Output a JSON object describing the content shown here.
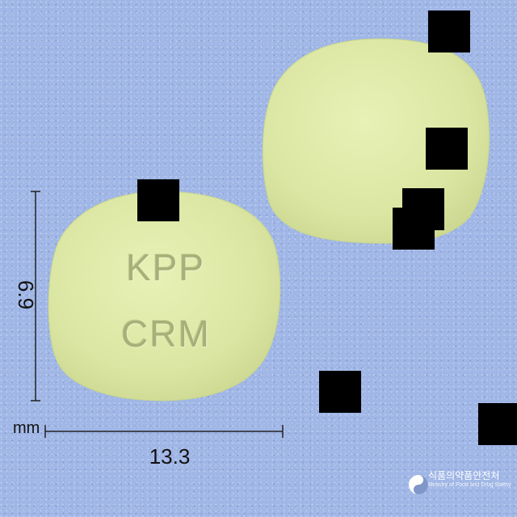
{
  "pill_front": {
    "imprint_line1": "KPP",
    "imprint_line2": "CRM"
  },
  "measurements": {
    "height": "6.9",
    "width": "13.3",
    "unit": "mm"
  },
  "logo": {
    "korean": "식품의약품안전처",
    "english": "Ministry of Food and Drug Safety"
  },
  "colors": {
    "background": "#9fb6e6",
    "pill": "#dde8a6",
    "imprint": "#a6b079"
  }
}
